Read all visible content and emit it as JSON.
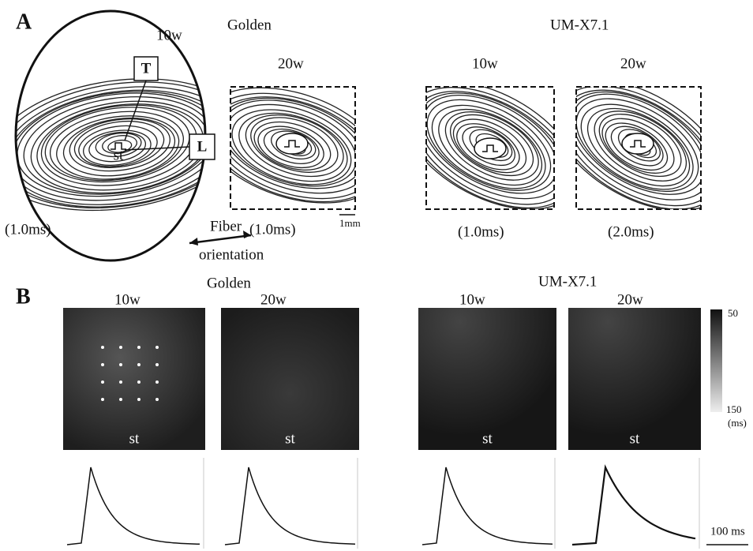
{
  "panel_a": {
    "label": "A",
    "golden": {
      "title": "Golden",
      "maps": [
        {
          "age": "10w",
          "time": "(1.0ms)"
        },
        {
          "age": "20w",
          "time": "(1.0ms)"
        }
      ],
      "stimulus": "st",
      "axes": [
        "T",
        "L"
      ],
      "fiber": "Fiber",
      "orientation": "orientation",
      "scale": "1mm"
    },
    "um_x71": {
      "title": "UM-X7.1",
      "maps": [
        {
          "age": "10w",
          "time": "(1.0ms)"
        },
        {
          "age": "20w",
          "time": "(2.0ms)"
        }
      ]
    }
  },
  "panel_b": {
    "label": "B",
    "golden": {
      "title": "Golden",
      "maps": [
        {
          "age": "10w",
          "stimulus": "st"
        },
        {
          "age": "20w",
          "stimulus": "st"
        }
      ]
    },
    "um_x71": {
      "title": "UM-X7.1",
      "maps": [
        {
          "age": "10w",
          "stimulus": "st"
        },
        {
          "age": "20w",
          "stimulus": "st"
        }
      ]
    },
    "colorbar": {
      "min": 50,
      "max": 150,
      "unit": "(ms)"
    },
    "time_scale": "100 ms"
  }
}
